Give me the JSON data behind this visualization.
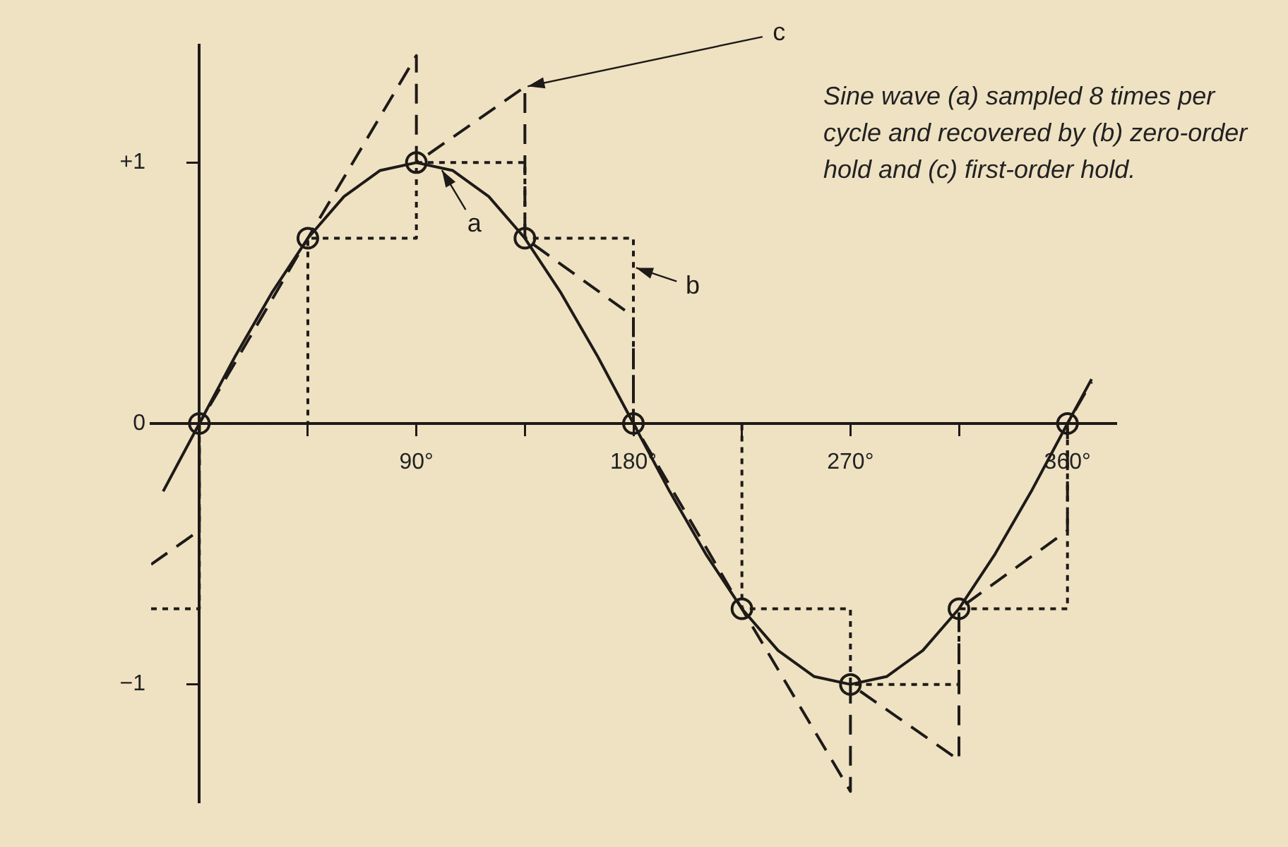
{
  "chart_data": {
    "type": "line",
    "annotations": [
      "Sine wave (a) sampled 8 times per cycle and recovered by (b) zero-order hold and (c) first-order hold.",
      {
        "text": "a",
        "x": 100,
        "y": 0.98
      },
      {
        "text": "b",
        "x": 180,
        "y": 0.6
      },
      {
        "text": "c",
        "x": 135,
        "y": 1.29
      }
    ],
    "xlim": [
      -20,
      380
    ],
    "xticks": [
      {
        "value": 45,
        "label": null
      },
      {
        "value": 90,
        "label": "90°"
      },
      {
        "value": 135,
        "label": null
      },
      {
        "value": 180,
        "label": "180°"
      },
      {
        "value": 225,
        "label": null
      },
      {
        "value": 270,
        "label": "270°"
      },
      {
        "value": 315,
        "label": null
      },
      {
        "value": 360,
        "label": "360°"
      }
    ],
    "ylim": [
      -1.45,
      1.45
    ],
    "yticks": [
      {
        "value": 1,
        "label": "+1"
      },
      0,
      {
        "value": -1,
        "label": "−1"
      }
    ],
    "grid": false,
    "legend": false,
    "series": [
      {
        "type": "line",
        "color": "#1e1a17",
        "line_style": "solid",
        "marker": "none",
        "x": [
          -15,
          0,
          15,
          30,
          45,
          60,
          75,
          90,
          105,
          120,
          135,
          150,
          165,
          180,
          195,
          210,
          225,
          240,
          255,
          270,
          285,
          300,
          315,
          330,
          345,
          360,
          370
        ],
        "values": [
          -0.26,
          0,
          0.26,
          0.5,
          0.71,
          0.87,
          0.97,
          1,
          0.97,
          0.87,
          0.71,
          0.5,
          0.26,
          0,
          -0.26,
          -0.5,
          -0.71,
          -0.87,
          -0.97,
          -1,
          -0.97,
          -0.87,
          -0.71,
          -0.5,
          -0.26,
          0,
          0.17
        ]
      },
      {
        "type": "step",
        "color": "#1e1a17",
        "line_style": "dotted",
        "marker": "none",
        "x": [
          -20,
          0,
          45,
          90,
          135,
          180,
          225,
          270,
          315,
          360
        ],
        "values": [
          -0.71,
          0,
          0.71,
          1,
          0.71,
          0,
          -0.71,
          -1,
          -0.71,
          0
        ]
      },
      {
        "type": "line",
        "color": "#1e1a17",
        "line_style": "dashed",
        "marker": "none",
        "x": [
          -20,
          0,
          0,
          45,
          90,
          90,
          135,
          135,
          180,
          180,
          225,
          270,
          270,
          315,
          315,
          360,
          360,
          370
        ],
        "values": [
          -0.54,
          -0.41,
          0,
          0.71,
          1.41,
          1,
          1.29,
          0.71,
          0.41,
          0,
          -0.71,
          -1.41,
          -1,
          -1.29,
          -0.71,
          -0.41,
          0,
          0.16
        ]
      },
      {
        "type": "scatter",
        "color": "#1e1a17",
        "marker": "circle",
        "x": [
          0,
          45,
          90,
          135,
          180,
          225,
          270,
          315,
          360
        ],
        "values": [
          0,
          0.71,
          1,
          0.71,
          0,
          -0.71,
          -1,
          -0.71,
          0
        ]
      }
    ]
  }
}
